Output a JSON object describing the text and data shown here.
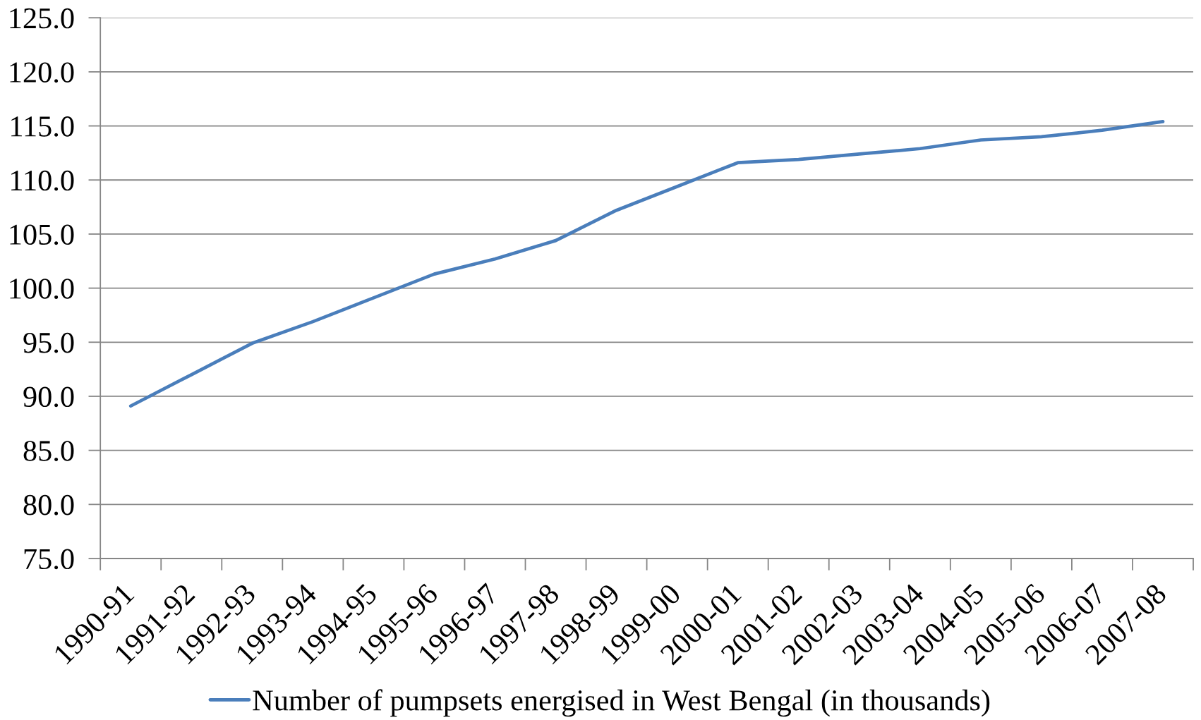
{
  "chart_data": {
    "type": "line",
    "categories": [
      "1990-91",
      "1991-92",
      "1992-93",
      "1993-94",
      "1994-95",
      "1995-96",
      "1996-97",
      "1997-98",
      "1998-99",
      "1999-00",
      "2000-01",
      "2001-02",
      "2002-03",
      "2003-04",
      "2004-05",
      "2005-06",
      "2006-07",
      "2007-08"
    ],
    "series": [
      {
        "name": "Number of pumpsets energised in West Bengal (in thousands)",
        "color": "#4a7ebb",
        "values": [
          89.1,
          92.0,
          94.9,
          96.9,
          99.1,
          101.3,
          102.7,
          104.4,
          107.2,
          109.4,
          111.6,
          111.9,
          112.4,
          112.9,
          113.7,
          114.0,
          114.6,
          115.4
        ]
      }
    ],
    "ylim": [
      75,
      125
    ],
    "yticks": [
      {
        "value": 75,
        "label": "75.0"
      },
      {
        "value": 80,
        "label": "80.0"
      },
      {
        "value": 85,
        "label": "85.0"
      },
      {
        "value": 90,
        "label": "90.0"
      },
      {
        "value": 95,
        "label": "95.0"
      },
      {
        "value": 100,
        "label": "100.0"
      },
      {
        "value": 105,
        "label": "105.0"
      },
      {
        "value": 110,
        "label": "110.0"
      },
      {
        "value": 115,
        "label": "115.0"
      },
      {
        "value": 120,
        "label": "120.0"
      },
      {
        "value": 125,
        "label": "125.0"
      }
    ],
    "grid": "y",
    "legend": "bottom"
  }
}
